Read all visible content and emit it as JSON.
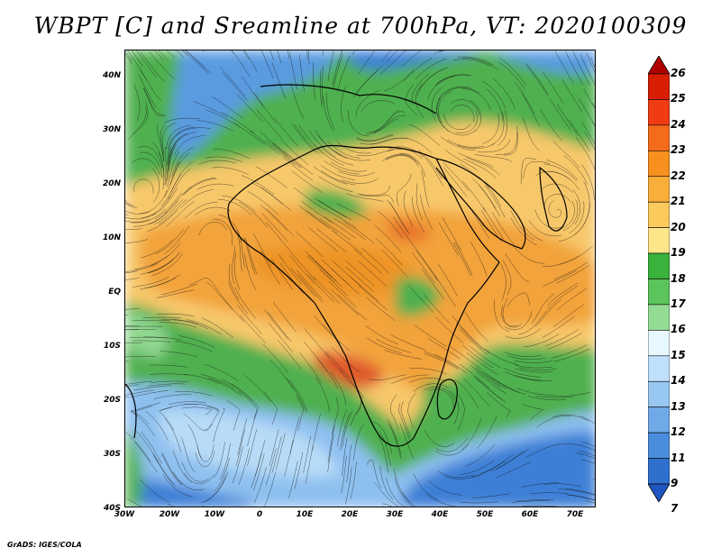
{
  "title": "WBPT [C] and Sreamline at 700hPa, VT: 2020100309",
  "map": {
    "lat_labels": [
      "40N",
      "30N",
      "20N",
      "10N",
      "EQ",
      "10S",
      "20S",
      "30S",
      "40S"
    ],
    "lon_labels": [
      "30W",
      "20W",
      "10W",
      "0",
      "10E",
      "20E",
      "30E",
      "40E",
      "50E",
      "60E",
      "70E"
    ],
    "field": "wet-bulb potential temperature with streamlines",
    "colors": {
      "cold_blue": "#3d7fd6",
      "light_blue": "#9ec9f2",
      "green": "#3aa83a",
      "light_green": "#8fd68f",
      "yellow": "#f7e08a",
      "orange": "#f2a33a",
      "red_orange": "#e05a2a"
    }
  },
  "colorbar": {
    "labels": [
      "26",
      "25",
      "24",
      "23",
      "22",
      "21",
      "20",
      "19",
      "18",
      "17",
      "16",
      "15",
      "14",
      "13",
      "12",
      "11",
      "9",
      "7"
    ],
    "colors": [
      "#b00000",
      "#d81e05",
      "#f03c12",
      "#f56b1c",
      "#f7901e",
      "#f9ae3a",
      "#fbca5c",
      "#fde58a",
      "#3bb23b",
      "#5cc45c",
      "#94dc94",
      "#e8f8ff",
      "#bfe0fb",
      "#98c8f2",
      "#6fa9e8",
      "#4a8ddd",
      "#2f70cf",
      "#1f55c0"
    ]
  },
  "credit": "GrADS: IGES/COLA"
}
